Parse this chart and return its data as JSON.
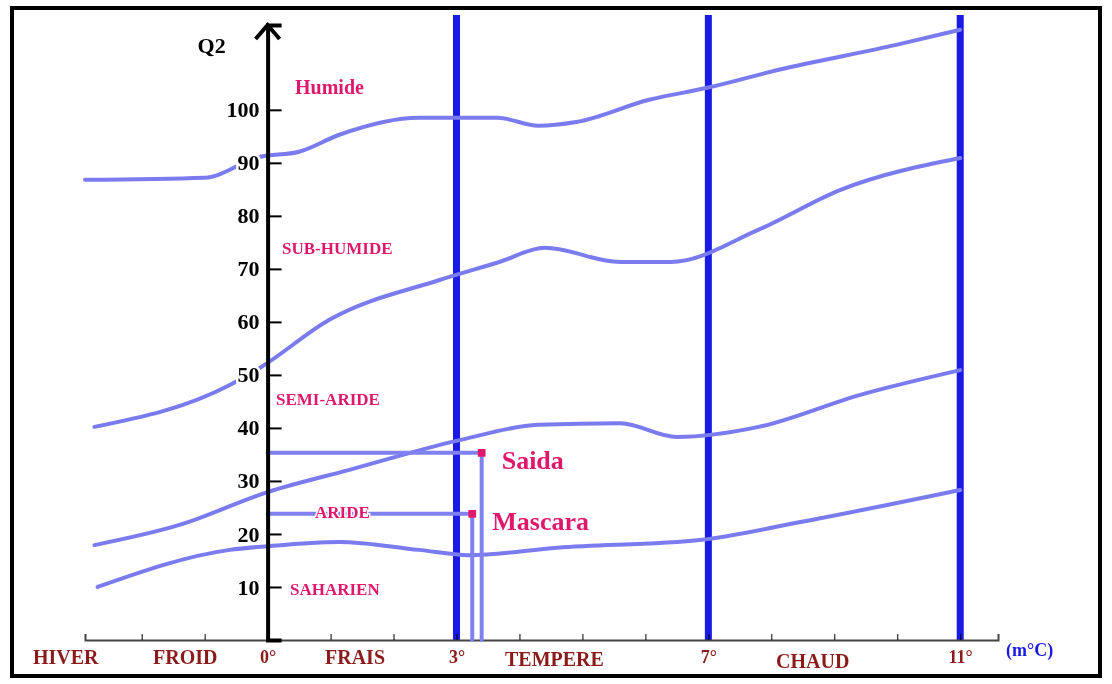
{
  "chart_data": {
    "type": "line",
    "xlabel": "(m°C)",
    "ylabel": "Q2",
    "xlim": [
      -2.9,
      11.6
    ],
    "ylim": [
      0,
      116
    ],
    "xticks": [
      {
        "value": -2,
        "label": null
      },
      {
        "value": -1,
        "label": null
      },
      {
        "value": 0,
        "label": "0°"
      },
      {
        "value": 1,
        "label": null
      },
      {
        "value": 2,
        "label": null
      },
      {
        "value": 3,
        "label": "3°"
      },
      {
        "value": 4,
        "label": null
      },
      {
        "value": 5,
        "label": null
      },
      {
        "value": 6,
        "label": null
      },
      {
        "value": 7,
        "label": "7°"
      },
      {
        "value": 8,
        "label": null
      },
      {
        "value": 9,
        "label": null
      },
      {
        "value": 10,
        "label": null
      },
      {
        "value": 11,
        "label": "11°"
      }
    ],
    "yticks": [
      10,
      20,
      30,
      40,
      50,
      60,
      70,
      80,
      90,
      100
    ],
    "grid": false,
    "line_style": "solid",
    "series": [
      {
        "color": "#7b7bf0",
        "marker": "none",
        "x": [
          -2.9,
          -1.0,
          -0.13,
          0.5,
          1.14,
          2.4,
          3.65,
          4.3,
          4.9,
          6.06,
          7.0,
          8.1,
          10.0,
          11.0
        ],
        "values": [
          86.8,
          87.2,
          91.1,
          92.1,
          95.3,
          98.5,
          98.5,
          97,
          97.7,
          101.9,
          104.2,
          107.5,
          112.3,
          115.1
        ]
      },
      {
        "color": "#7b7bf0",
        "marker": "none",
        "x": [
          -2.75,
          -0.6,
          -0.1,
          0.98,
          2.73,
          3.68,
          4.4,
          5.6,
          6.4,
          7.8,
          9.1,
          11.0
        ],
        "values": [
          40.2,
          48.1,
          51.5,
          60.4,
          67.9,
          71.3,
          74,
          71.3,
          71.3,
          77.4,
          84.9,
          90.9
        ]
      },
      {
        "color": "#7b7bf0",
        "marker": "none",
        "x": [
          -2.75,
          -1.4,
          0,
          1.3,
          3.05,
          4.3,
          5.6,
          6.5,
          7.8,
          9.4,
          11.0
        ],
        "values": [
          17.9,
          21.7,
          27.9,
          32.1,
          37.7,
          40.6,
          40.9,
          38.3,
          40.2,
          46.2,
          50.9
        ]
      },
      {
        "color": "#7b7bf0",
        "marker": "none",
        "x": [
          -2.7,
          -0.6,
          0,
          1.14,
          2.4,
          3.2,
          4.6,
          6.9,
          8.4,
          11.0
        ],
        "values": [
          10,
          17,
          17.7,
          18.5,
          17,
          16,
          17.4,
          18.9,
          22.1,
          28.3
        ]
      },
      {
        "color": "#8080f0",
        "marker": "none",
        "x": [
          0,
          3.4,
          3.4
        ],
        "values": [
          35.3,
          35.3,
          0
        ]
      },
      {
        "color": "#8080f0",
        "marker": "none",
        "x": [
          0,
          3.25,
          3.25
        ],
        "values": [
          23.8,
          23.8,
          0
        ]
      },
      {
        "type": "scatter",
        "name": "Saida",
        "color": "#e0186c",
        "marker": "square",
        "x": [
          3.4
        ],
        "values": [
          35.3
        ]
      },
      {
        "type": "scatter",
        "name": "Mascara",
        "color": "#e0186c",
        "marker": "square",
        "x": [
          3.25
        ],
        "values": [
          23.8
        ]
      }
    ],
    "ref_lines": [
      {
        "axis": "x",
        "value": 3,
        "color": "#1a1ae6"
      },
      {
        "axis": "x",
        "value": 7,
        "color": "#1a1ae6"
      },
      {
        "axis": "x",
        "value": 11,
        "color": "#1a1ae6"
      }
    ],
    "annotations": [
      "Humide",
      "SUB-HUMIDE",
      "SEMI-ARIDE",
      "ARIDE",
      "SAHARIEN",
      "HIVER",
      "FROID",
      "FRAIS",
      "TEMPERE",
      "CHAUD"
    ]
  }
}
